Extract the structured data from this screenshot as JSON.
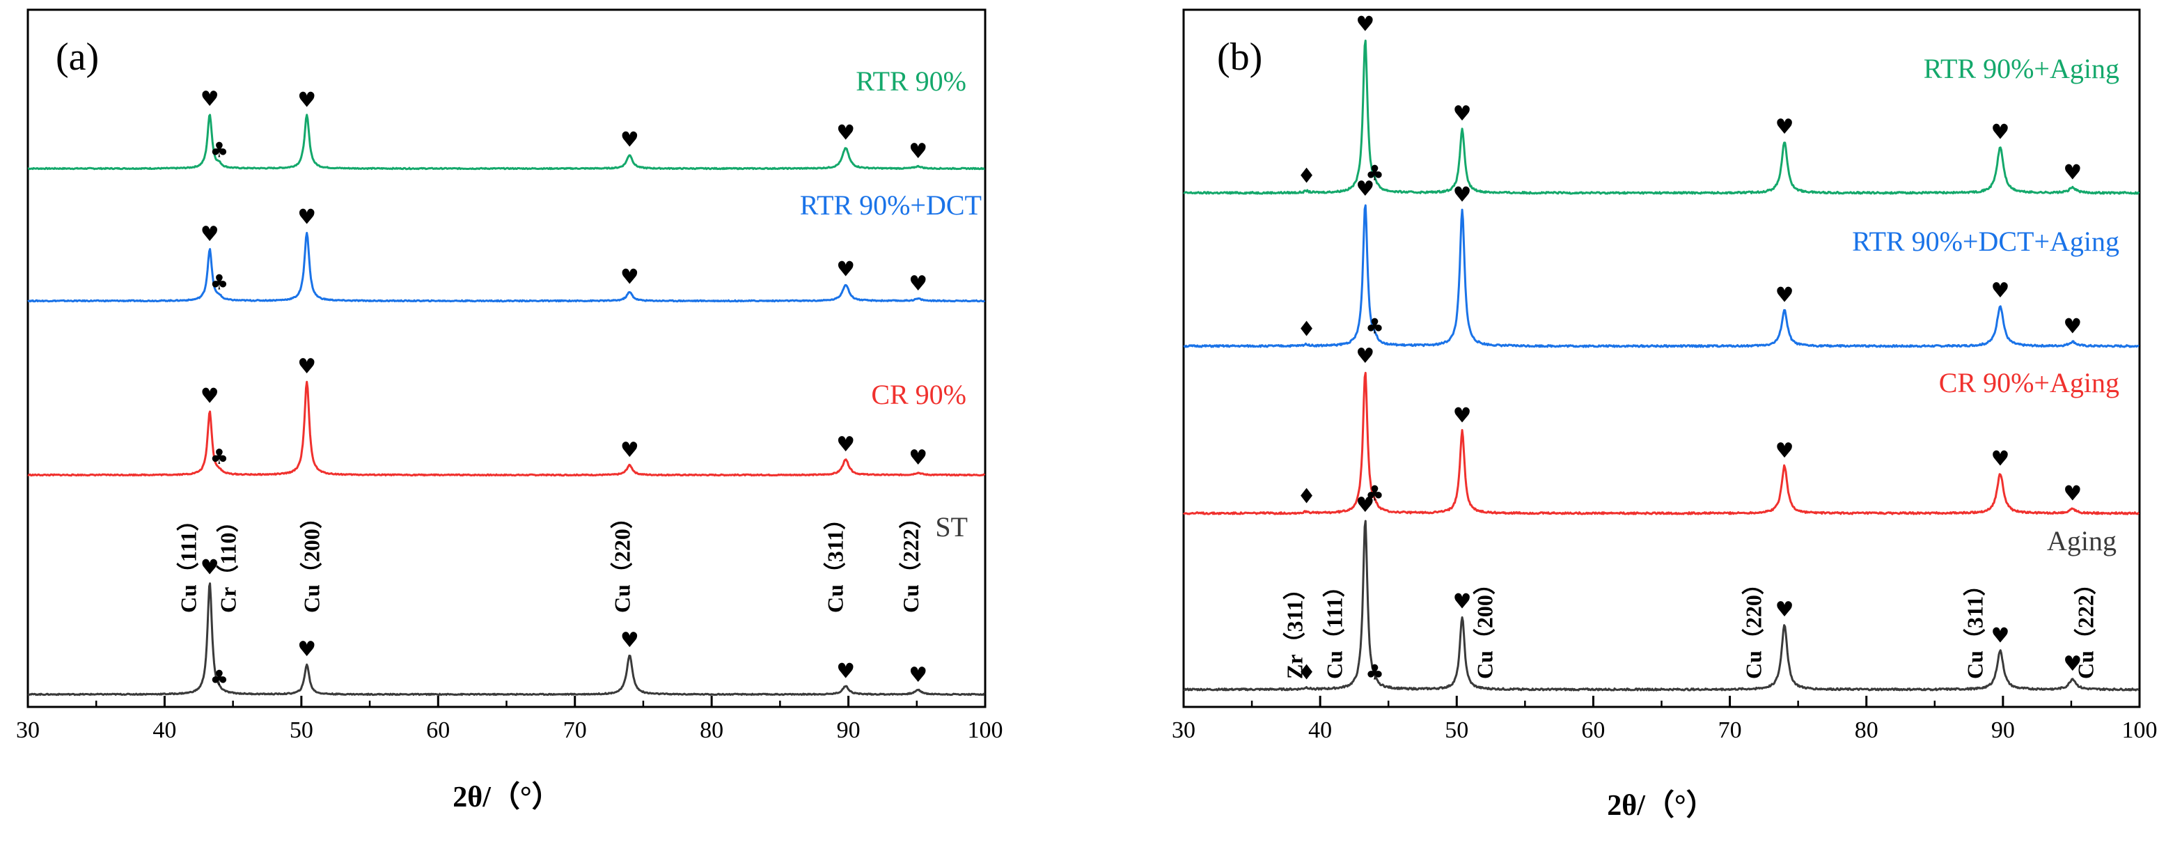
{
  "colors": {
    "black": "#3a3a3a",
    "red": "#f0312e",
    "blue": "#1a73e8",
    "green": "#14a86b"
  },
  "chart_data": [
    {
      "type": "line",
      "panel": "(a)",
      "xlabel": "2θ/（°）",
      "xlim": [
        30,
        100
      ],
      "xticks": [
        30,
        40,
        50,
        60,
        70,
        80,
        90,
        100
      ],
      "yticks_visible": false,
      "series": [
        {
          "name": "RTR 90%",
          "color": "green",
          "peaks": [
            [
              43.3,
              1.0
            ],
            [
              44.0,
              0.06
            ],
            [
              50.4,
              0.98
            ],
            [
              74.0,
              0.25
            ],
            [
              89.8,
              0.38
            ],
            [
              95.1,
              0.04
            ]
          ],
          "markers": [
            {
              "x": 43.3,
              "y": 1.0,
              "symbol": "♥"
            },
            {
              "x": 44.0,
              "y": 0.06,
              "symbol": "♣"
            },
            {
              "x": 50.4,
              "y": 0.98,
              "symbol": "♥"
            },
            {
              "x": 74.0,
              "y": 0.25,
              "symbol": "♥"
            },
            {
              "x": 89.8,
              "y": 0.38,
              "symbol": "♥"
            },
            {
              "x": 95.1,
              "y": 0.04,
              "symbol": "♥"
            }
          ]
        },
        {
          "name": "RTR 90%+DCT",
          "color": "blue",
          "peaks": [
            [
              43.3,
              0.95
            ],
            [
              44.0,
              0.06
            ],
            [
              50.4,
              1.26
            ],
            [
              74.0,
              0.16
            ],
            [
              89.8,
              0.3
            ],
            [
              95.1,
              0.04
            ]
          ],
          "markers": [
            {
              "x": 43.3,
              "y": 0.95,
              "symbol": "♥"
            },
            {
              "x": 44.0,
              "y": 0.06,
              "symbol": "♣"
            },
            {
              "x": 50.4,
              "y": 1.26,
              "symbol": "♥"
            },
            {
              "x": 74.0,
              "y": 0.16,
              "symbol": "♥"
            },
            {
              "x": 89.8,
              "y": 0.3,
              "symbol": "♥"
            },
            {
              "x": 95.1,
              "y": 0.04,
              "symbol": "♥"
            }
          ]
        },
        {
          "name": "CR 90%",
          "color": "red",
          "peaks": [
            [
              43.3,
              1.17
            ],
            [
              44.0,
              0.05
            ],
            [
              50.4,
              1.72
            ],
            [
              74.0,
              0.18
            ],
            [
              89.8,
              0.28
            ],
            [
              95.1,
              0.04
            ]
          ],
          "markers": [
            {
              "x": 43.3,
              "y": 1.17,
              "symbol": "♥"
            },
            {
              "x": 44.0,
              "y": 0.05,
              "symbol": "♣"
            },
            {
              "x": 50.4,
              "y": 1.72,
              "symbol": "♥"
            },
            {
              "x": 74.0,
              "y": 0.18,
              "symbol": "♥"
            },
            {
              "x": 89.8,
              "y": 0.28,
              "symbol": "♥"
            },
            {
              "x": 95.1,
              "y": 0.04,
              "symbol": "♥"
            }
          ]
        },
        {
          "name": "ST",
          "color": "black",
          "peaks": [
            [
              43.3,
              2.06
            ],
            [
              44.0,
              0.02
            ],
            [
              50.4,
              0.55
            ],
            [
              74.0,
              0.72
            ],
            [
              89.8,
              0.15
            ],
            [
              95.1,
              0.08
            ]
          ],
          "markers": [
            {
              "x": 43.3,
              "y": 2.06,
              "symbol": "♥"
            },
            {
              "x": 44.0,
              "y": 0.02,
              "symbol": "♣"
            },
            {
              "x": 50.4,
              "y": 0.55,
              "symbol": "♥"
            },
            {
              "x": 74.0,
              "y": 0.72,
              "symbol": "♥"
            },
            {
              "x": 89.8,
              "y": 0.15,
              "symbol": "♥"
            },
            {
              "x": 95.1,
              "y": 0.08,
              "symbol": "♥"
            }
          ],
          "peak_labels": [
            {
              "text": "Cu（111）",
              "x": 42.3
            },
            {
              "text": "Cr（110）",
              "x": 45.2
            },
            {
              "text": "Cu（200）",
              "x": 51.3
            },
            {
              "text": "Cu（220）",
              "x": 74.0
            },
            {
              "text": "Cu（311）",
              "x": 89.6
            },
            {
              "text": "Cu（222）",
              "x": 95.1
            }
          ]
        }
      ]
    },
    {
      "type": "line",
      "panel": "(b)",
      "xlabel": "2θ/（°）",
      "xlim": [
        30,
        100
      ],
      "xticks": [
        30,
        40,
        50,
        60,
        70,
        80,
        90,
        100
      ],
      "yticks_visible": false,
      "series": [
        {
          "name": "RTR 90%+Aging",
          "color": "green",
          "peaks": [
            [
              39.0,
              0.02
            ],
            [
              43.3,
              1.75
            ],
            [
              44.0,
              0.05
            ],
            [
              50.4,
              0.73
            ],
            [
              74.0,
              0.58
            ],
            [
              89.8,
              0.52
            ],
            [
              95.1,
              0.06
            ]
          ],
          "markers": [
            {
              "x": 39.0,
              "y": 0.02,
              "symbol": "♦"
            },
            {
              "x": 43.3,
              "y": 1.75,
              "symbol": "♥"
            },
            {
              "x": 44.0,
              "y": 0.05,
              "symbol": "♣"
            },
            {
              "x": 50.4,
              "y": 0.73,
              "symbol": "♥"
            },
            {
              "x": 74.0,
              "y": 0.58,
              "symbol": "♥"
            },
            {
              "x": 89.8,
              "y": 0.52,
              "symbol": "♥"
            },
            {
              "x": 95.1,
              "y": 0.06,
              "symbol": "♥"
            }
          ]
        },
        {
          "name": "RTR 90%+DCT+Aging",
          "color": "blue",
          "peaks": [
            [
              39.0,
              0.02
            ],
            [
              43.3,
              1.62
            ],
            [
              44.0,
              0.05
            ],
            [
              50.4,
              1.55
            ],
            [
              74.0,
              0.41
            ],
            [
              89.8,
              0.46
            ],
            [
              95.1,
              0.05
            ]
          ],
          "markers": [
            {
              "x": 39.0,
              "y": 0.02,
              "symbol": "♦"
            },
            {
              "x": 43.3,
              "y": 1.62,
              "symbol": "♥"
            },
            {
              "x": 44.0,
              "y": 0.05,
              "symbol": "♣"
            },
            {
              "x": 50.4,
              "y": 1.55,
              "symbol": "♥"
            },
            {
              "x": 74.0,
              "y": 0.41,
              "symbol": "♥"
            },
            {
              "x": 89.8,
              "y": 0.46,
              "symbol": "♥"
            },
            {
              "x": 95.1,
              "y": 0.05,
              "symbol": "♥"
            }
          ]
        },
        {
          "name": "CR 90%+Aging",
          "color": "red",
          "peaks": [
            [
              39.0,
              0.02
            ],
            [
              43.3,
              1.62
            ],
            [
              44.0,
              0.05
            ],
            [
              50.4,
              0.94
            ],
            [
              74.0,
              0.54
            ],
            [
              89.8,
              0.45
            ],
            [
              95.1,
              0.05
            ]
          ],
          "markers": [
            {
              "x": 39.0,
              "y": 0.02,
              "symbol": "♦"
            },
            {
              "x": 43.3,
              "y": 1.62,
              "symbol": "♥"
            },
            {
              "x": 44.0,
              "y": 0.05,
              "symbol": "♣"
            },
            {
              "x": 50.4,
              "y": 0.94,
              "symbol": "♥"
            },
            {
              "x": 74.0,
              "y": 0.54,
              "symbol": "♥"
            },
            {
              "x": 89.8,
              "y": 0.45,
              "symbol": "♥"
            },
            {
              "x": 95.1,
              "y": 0.05,
              "symbol": "♥"
            }
          ]
        },
        {
          "name": "Aging",
          "color": "black",
          "peaks": [
            [
              39.0,
              0.02
            ],
            [
              43.3,
              1.93
            ],
            [
              44.0,
              0.02
            ],
            [
              50.4,
              0.83
            ],
            [
              74.0,
              0.74
            ],
            [
              89.8,
              0.44
            ],
            [
              95.1,
              0.12
            ]
          ],
          "markers": [
            {
              "x": 39.0,
              "y": 0.02,
              "symbol": "♦"
            },
            {
              "x": 43.3,
              "y": 1.93,
              "symbol": "♥"
            },
            {
              "x": 44.0,
              "y": 0.02,
              "symbol": "♣"
            },
            {
              "x": 50.4,
              "y": 0.83,
              "symbol": "♥"
            },
            {
              "x": 74.0,
              "y": 0.74,
              "symbol": "♥"
            },
            {
              "x": 89.8,
              "y": 0.44,
              "symbol": "♥"
            },
            {
              "x": 95.1,
              "y": 0.12,
              "symbol": "♥"
            }
          ],
          "peak_labels": [
            {
              "text": "Zr（311）",
              "x": 38.7
            },
            {
              "text": "Cu（111）",
              "x": 41.6
            },
            {
              "text": "Cu（200）",
              "x": 52.6
            },
            {
              "text": "Cu（220）",
              "x": 72.3
            },
            {
              "text": "Cu（311）",
              "x": 88.5
            },
            {
              "text": "Cu（222）",
              "x": 96.6
            }
          ]
        }
      ]
    }
  ]
}
